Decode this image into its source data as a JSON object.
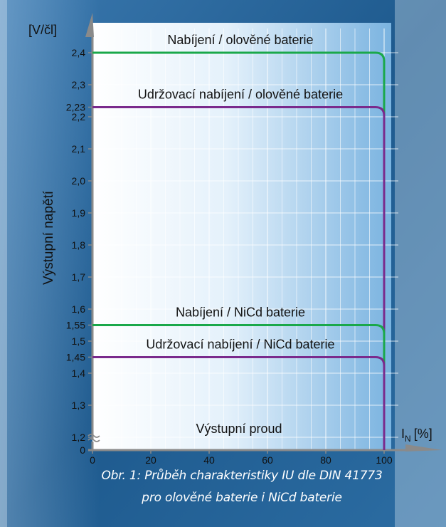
{
  "chart_data": {
    "type": "line",
    "ylabel": "Výstupní napětí",
    "yunit": "[V/čl]",
    "xlabel": "Výstupní proud",
    "xunit_main": "I",
    "xunit_sub": "N",
    "xunit_pct": "[%]",
    "x_ticks": [
      0,
      20,
      40,
      60,
      80,
      100
    ],
    "y_ticks": [
      "0",
      "1,2",
      "1,3",
      "1,4",
      "1,45",
      "1,5",
      "1,55",
      "1,6",
      "1,7",
      "1,8",
      "1,9",
      "2,0",
      "2,1",
      "2,2",
      "2,23",
      "2,3",
      "2,4"
    ],
    "axis_break": true,
    "xlim": [
      0,
      100
    ],
    "ylim": [
      1.15,
      2.45
    ],
    "grid": true,
    "series": [
      {
        "name": "Nabíjení / olověné baterie",
        "color": "#1aa84a",
        "y": 2.4,
        "x_knee": 96
      },
      {
        "name": "Udržovací nabíjení / olověné baterie",
        "color": "#7a2a8c",
        "y": 2.23,
        "x_knee": 96
      },
      {
        "name": "Nabíjení / NiCd baterie",
        "color": "#1aa84a",
        "y": 1.55,
        "x_knee": 96
      },
      {
        "name": "Udržovací nabíjení / NiCd baterie",
        "color": "#7a2a8c",
        "y": 1.45,
        "x_knee": 96
      }
    ]
  },
  "caption": {
    "line1": "Obr. 1: Průběh charakteristiky IU dle DIN 41773",
    "line2": "pro olověné baterie i NiCd baterie"
  }
}
